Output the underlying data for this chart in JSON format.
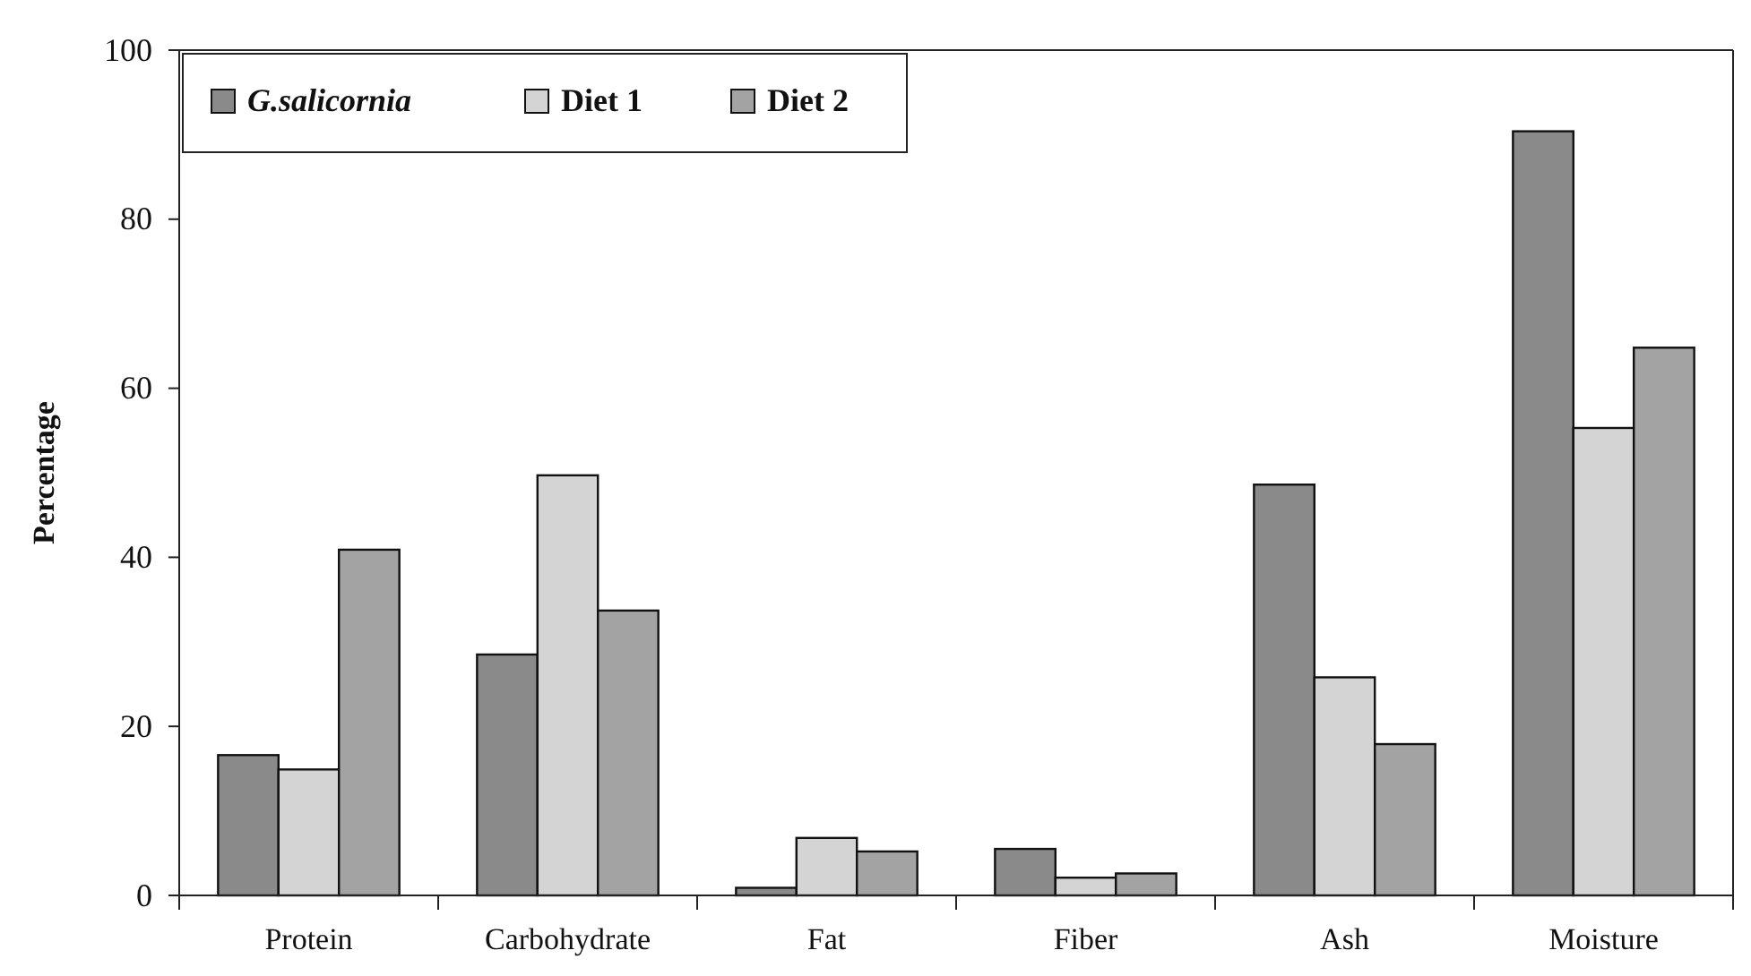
{
  "chart_data": {
    "type": "bar",
    "ylabel": "Percentage",
    "categories": [
      "Protein",
      "Carbohydrate",
      "Fat",
      "Fiber",
      "Ash",
      "Moisture"
    ],
    "series": [
      {
        "name": "G.salicornia",
        "color": "#8a8a8a",
        "values": [
          16.6,
          28.5,
          0.9,
          5.5,
          48.6,
          90.4
        ]
      },
      {
        "name": "Diet 1",
        "color": "#d4d4d4",
        "values": [
          14.9,
          49.7,
          6.8,
          2.1,
          25.8,
          55.3
        ]
      },
      {
        "name": "Diet 2",
        "color": "#a3a3a3",
        "values": [
          40.9,
          33.7,
          5.2,
          2.6,
          17.9,
          64.8
        ]
      }
    ],
    "ylim": [
      0,
      100
    ],
    "yticks": [
      0,
      20,
      40,
      60,
      80,
      100
    ],
    "legend": "top left",
    "grid": false
  }
}
